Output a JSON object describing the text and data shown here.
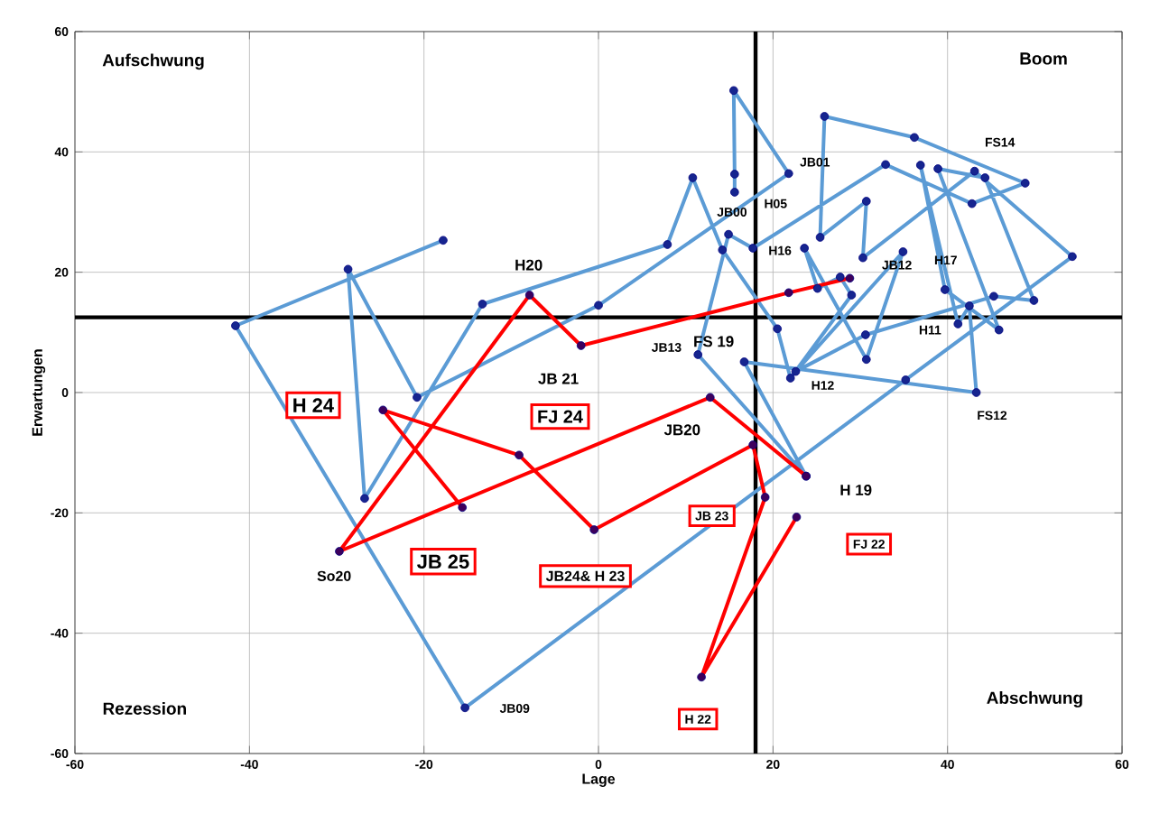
{
  "chart_data": {
    "type": "line",
    "xlabel": "Lage",
    "ylabel": "Erwartungen",
    "xlim": [
      -60,
      60
    ],
    "ylim": [
      -60,
      60
    ],
    "xticks": [
      -60,
      -40,
      -20,
      0,
      20,
      40,
      60
    ],
    "yticks": [
      -60,
      -40,
      -20,
      0,
      20,
      40,
      60
    ],
    "grid": true,
    "marker": "circle",
    "line_style": "solid",
    "series": [
      {
        "color": "#5b9bd5",
        "x": [
          15.6,
          15.6,
          15.5,
          21.8,
          0,
          -20.8,
          -28.7,
          -26.8,
          -13.3,
          7.9,
          10.8,
          14.2,
          20.5,
          22.0,
          29.0,
          27.7,
          25.1,
          23.6,
          30.7,
          34.9,
          22.6,
          30.6,
          45.3,
          49.9,
          44.3,
          38.9,
          45.9,
          39.7,
          36.9,
          41.2,
          42.5,
          43.3,
          16.7,
          23.8,
          11.4,
          14.9,
          17.7,
          32.9,
          42.8,
          48.9,
          36.2,
          25.9,
          25.4,
          30.7,
          30.3,
          43.1,
          54.3,
          35.2,
          -15.3,
          -41.6,
          -17.8
        ],
        "values": [
          33.3,
          36.3,
          50.2,
          36.4,
          14.5,
          -0.8,
          20.5,
          -17.6,
          14.7,
          24.6,
          35.7,
          23.7,
          10.6,
          2.4,
          16.2,
          19.2,
          17.3,
          24.0,
          5.5,
          23.4,
          3.5,
          9.6,
          16.0,
          15.3,
          35.7,
          37.2,
          10.4,
          17.1,
          37.8,
          11.4,
          14.4,
          0,
          5.1,
          -13.9,
          6.3,
          26.3,
          24.0,
          37.9,
          31.4,
          34.8,
          42.4,
          45.9,
          25.8,
          31.8,
          22.4,
          36.8,
          22.6,
          2.1,
          -52.4,
          11.1,
          25.3
        ]
      },
      {
        "color": "#ff0000",
        "x": [
          23.8,
          12.8,
          -29.7,
          -7.9,
          -2.0,
          21.8,
          28.8,
          null,
          22.7,
          11.8,
          19.1,
          17.7,
          -0.5,
          -9.1,
          -24.7,
          -15.6
        ],
        "values": [
          -13.9,
          -0.8,
          -26.4,
          16.2,
          7.8,
          16.6,
          19.0,
          null,
          -20.7,
          -47.3,
          -17.4,
          -8.7,
          -22.8,
          -10.4,
          -2.9,
          -19.1
        ]
      }
    ],
    "ref_lines": [
      {
        "axis": "x",
        "value": 18,
        "color": "#000000"
      },
      {
        "axis": "y",
        "value": 12.5,
        "color": "#000000"
      }
    ],
    "annotations": [
      "Aufschwung",
      "Boom",
      "Rezession",
      "Abschwung",
      "H20",
      "JB 21",
      "H 24",
      "FJ 24",
      "JB20",
      "JB 25",
      "JB24& H 23",
      "So20",
      "JB09",
      "JB 23",
      "H 19",
      "FJ 22",
      "H 22",
      "JB13",
      "FS 19",
      "H12",
      "FS12",
      "H11",
      "H17",
      "JB12",
      "H16",
      "JB00",
      "H05",
      "JB01",
      "FS14"
    ]
  }
}
